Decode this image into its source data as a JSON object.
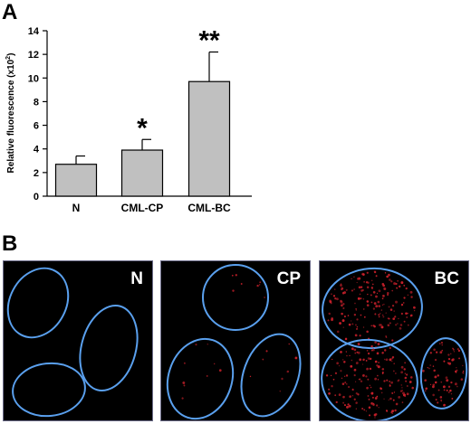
{
  "panel_a_label": "A",
  "panel_b_label": "B",
  "chart_data": {
    "type": "bar",
    "categories": [
      "N",
      "CML-CP",
      "CML-BC"
    ],
    "values": [
      2.7,
      3.9,
      9.7
    ],
    "errors": [
      0.7,
      0.9,
      2.5
    ],
    "significance": [
      "",
      "*",
      "**"
    ],
    "ylabel": "Relative fluorescence (x10",
    "ylabel_sup": "2",
    "ylabel_close": ")",
    "ylim": [
      0,
      14
    ],
    "yticks": [
      "0",
      "2",
      "4",
      "6",
      "8",
      "10",
      "12",
      "14"
    ],
    "bar_color": "#c0c0c0",
    "grid": false
  },
  "micrographs": [
    {
      "label": "N",
      "signal": "none"
    },
    {
      "label": "CP",
      "signal": "low"
    },
    {
      "label": "BC",
      "signal": "high"
    }
  ],
  "colors": {
    "outline": "#5aa0ee",
    "dots": "#c8202a",
    "background": "#000000"
  }
}
